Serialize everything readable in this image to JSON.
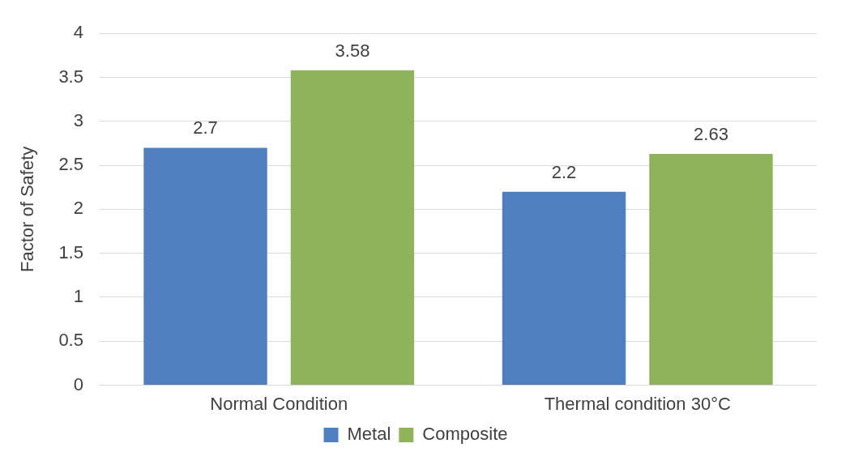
{
  "chart_data": {
    "type": "bar",
    "ylabel": "Factor of Safety",
    "categories": [
      "Normal Condition",
      "Thermal condition 30°C"
    ],
    "series": [
      {
        "name": "Metal",
        "color": "#4f7fbf",
        "values": [
          2.7,
          2.2
        ]
      },
      {
        "name": "Composite",
        "color": "#8fb35a",
        "values": [
          3.58,
          2.63
        ]
      }
    ],
    "ylim": [
      0,
      4
    ],
    "yticks": [
      0,
      0.5,
      1,
      1.5,
      2,
      2.5,
      3,
      3.5,
      4
    ],
    "grid": "y",
    "legend": "bottom",
    "data_labels": true
  }
}
